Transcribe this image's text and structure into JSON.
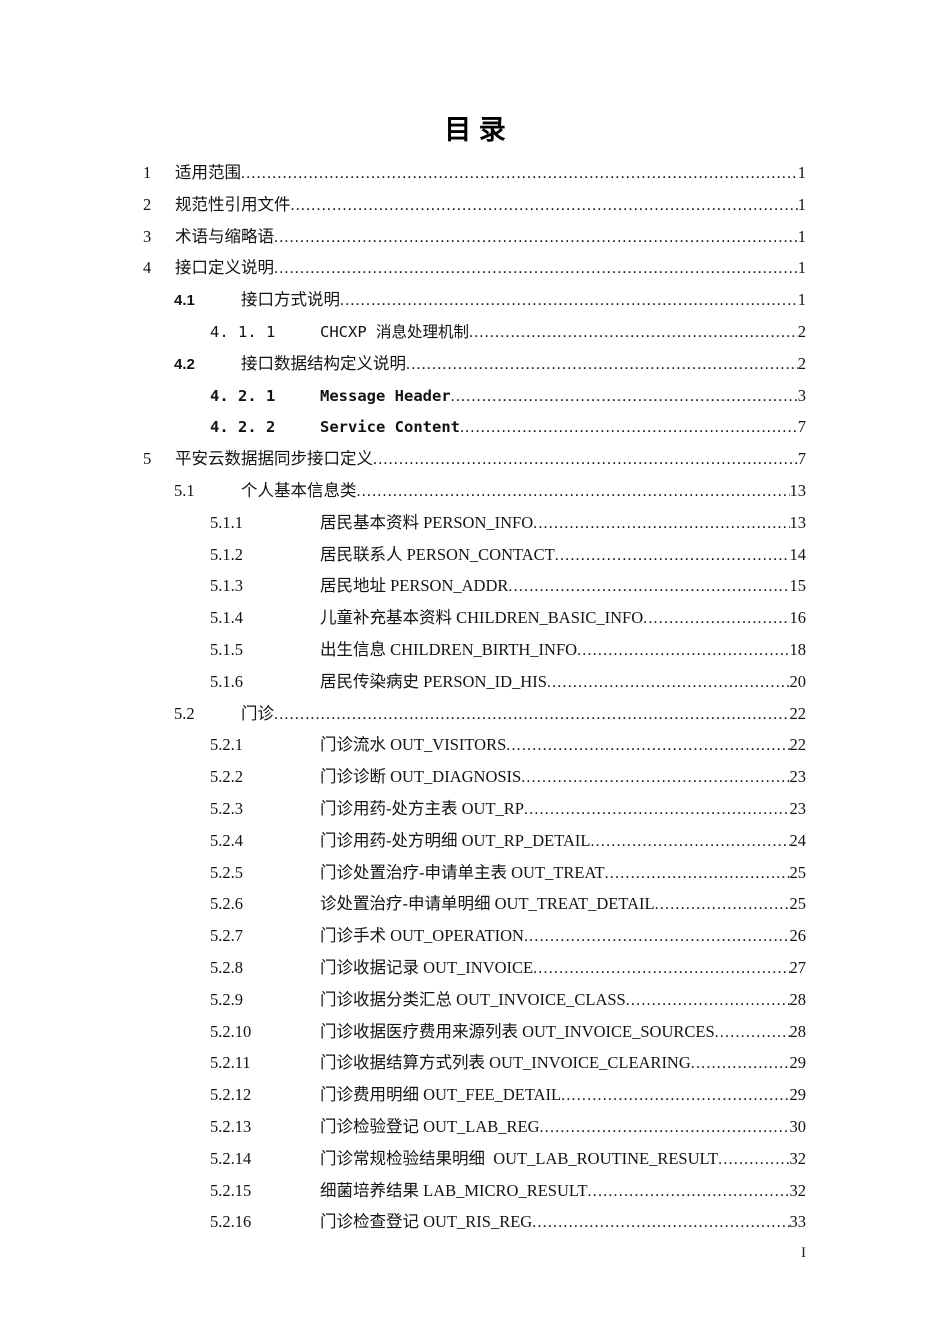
{
  "document": {
    "title": "目 录",
    "footer_page_number": "I"
  },
  "toc_entries": [
    {
      "num": "1",
      "title": "适用范围",
      "page": "1",
      "level": 1,
      "style": "plain"
    },
    {
      "num": "2",
      "title": "规范性引用文件",
      "page": "1",
      "level": 1,
      "style": "plain"
    },
    {
      "num": "3",
      "title": "术语与缩略语",
      "page": "1",
      "level": 1,
      "style": "plain"
    },
    {
      "num": "4",
      "title": "接口定义说明",
      "page": "1",
      "level": 1,
      "style": "plain"
    },
    {
      "num": "4.1",
      "title": "接口方式说明",
      "page": "1",
      "level": 2,
      "style": "boldnum"
    },
    {
      "num": "4. 1. 1",
      "title": "CHCXP 消息处理机制",
      "page": "2",
      "level": 3,
      "style": "mono"
    },
    {
      "num": "4.2",
      "title": "接口数据结构定义说明",
      "page": "2",
      "level": 2,
      "style": "boldnum"
    },
    {
      "num": "4. 2. 1",
      "title": "Message Header",
      "page": "3",
      "level": 3,
      "style": "monobold"
    },
    {
      "num": "4. 2. 2",
      "title": "Service Content",
      "page": "7",
      "level": 3,
      "style": "monobold"
    },
    {
      "num": "5",
      "title": "平安云数据据同步接口定义",
      "page": "7",
      "level": 1,
      "style": "plain"
    },
    {
      "num": "5.1",
      "title": "个人基本信息类",
      "page": "13",
      "level": 2,
      "style": "plain"
    },
    {
      "num": "5.1.1",
      "title": "居民基本资料 PERSON_INFO",
      "page": "13",
      "level": 3,
      "style": "plain"
    },
    {
      "num": "5.1.2",
      "title": "居民联系人 PERSON_CONTACT",
      "page": "14",
      "level": 3,
      "style": "plain"
    },
    {
      "num": "5.1.3",
      "title": "居民地址 PERSON_ADDR",
      "page": "15",
      "level": 3,
      "style": "plain"
    },
    {
      "num": "5.1.4",
      "title": "儿童补充基本资料 CHILDREN_BASIC_INFO",
      "page": "16",
      "level": 3,
      "style": "plain"
    },
    {
      "num": "5.1.5",
      "title": "出生信息 CHILDREN_BIRTH_INFO",
      "page": "18",
      "level": 3,
      "style": "plain"
    },
    {
      "num": "5.1.6",
      "title": "居民传染病史 PERSON_ID_HIS",
      "page": "20",
      "level": 3,
      "style": "plain"
    },
    {
      "num": "5.2",
      "title": "门诊",
      "page": "22",
      "level": 2,
      "style": "plain"
    },
    {
      "num": "5.2.1",
      "title": "门诊流水 OUT_VISITORS",
      "page": "22",
      "level": 3,
      "style": "plain"
    },
    {
      "num": "5.2.2",
      "title": "门诊诊断 OUT_DIAGNOSIS",
      "page": "23",
      "level": 3,
      "style": "plain"
    },
    {
      "num": "5.2.3",
      "title": "门诊用药-处方主表 OUT_RP",
      "page": "23",
      "level": 3,
      "style": "plain"
    },
    {
      "num": "5.2.4",
      "title": "门诊用药-处方明细 OUT_RP_DETAIL",
      "page": "24",
      "level": 3,
      "style": "plain"
    },
    {
      "num": "5.2.5",
      "title": "门诊处置治疗-申请单主表 OUT_TREAT",
      "page": "25",
      "level": 3,
      "style": "plain"
    },
    {
      "num": "5.2.6",
      "title": "诊处置治疗-申请单明细 OUT_TREAT_DETAIL",
      "page": "25",
      "level": 3,
      "style": "plain"
    },
    {
      "num": "5.2.7",
      "title": "门诊手术 OUT_OPERATION",
      "page": "26",
      "level": 3,
      "style": "plain"
    },
    {
      "num": "5.2.8",
      "title": "门诊收据记录 OUT_INVOICE",
      "page": "27",
      "level": 3,
      "style": "plain"
    },
    {
      "num": "5.2.9",
      "title": "门诊收据分类汇总 OUT_INVOICE_CLASS",
      "page": "28",
      "level": 3,
      "style": "plain"
    },
    {
      "num": "5.2.10",
      "title": "门诊收据医疗费用来源列表 OUT_INVOICE_SOURCES",
      "page": "28",
      "level": 3,
      "style": "plain"
    },
    {
      "num": "5.2.11",
      "title": "门诊收据结算方式列表 OUT_INVOICE_CLEARING",
      "page": "29",
      "level": 3,
      "style": "plain"
    },
    {
      "num": "5.2.12",
      "title": "门诊费用明细 OUT_FEE_DETAIL",
      "page": "29",
      "level": 3,
      "style": "plain"
    },
    {
      "num": "5.2.13",
      "title": "门诊检验登记 OUT_LAB_REG",
      "page": "30",
      "level": 3,
      "style": "plain"
    },
    {
      "num": "5.2.14",
      "title": "门诊常规检验结果明细  OUT_LAB_ROUTINE_RESULT",
      "page": "32",
      "level": 3,
      "style": "plain"
    },
    {
      "num": "5.2.15",
      "title": "细菌培养结果 LAB_MICRO_RESULT",
      "page": "32",
      "level": 3,
      "style": "plain"
    },
    {
      "num": "5.2.16",
      "title": "门诊检查登记 OUT_RIS_REG",
      "page": "33",
      "level": 3,
      "style": "plain"
    }
  ]
}
